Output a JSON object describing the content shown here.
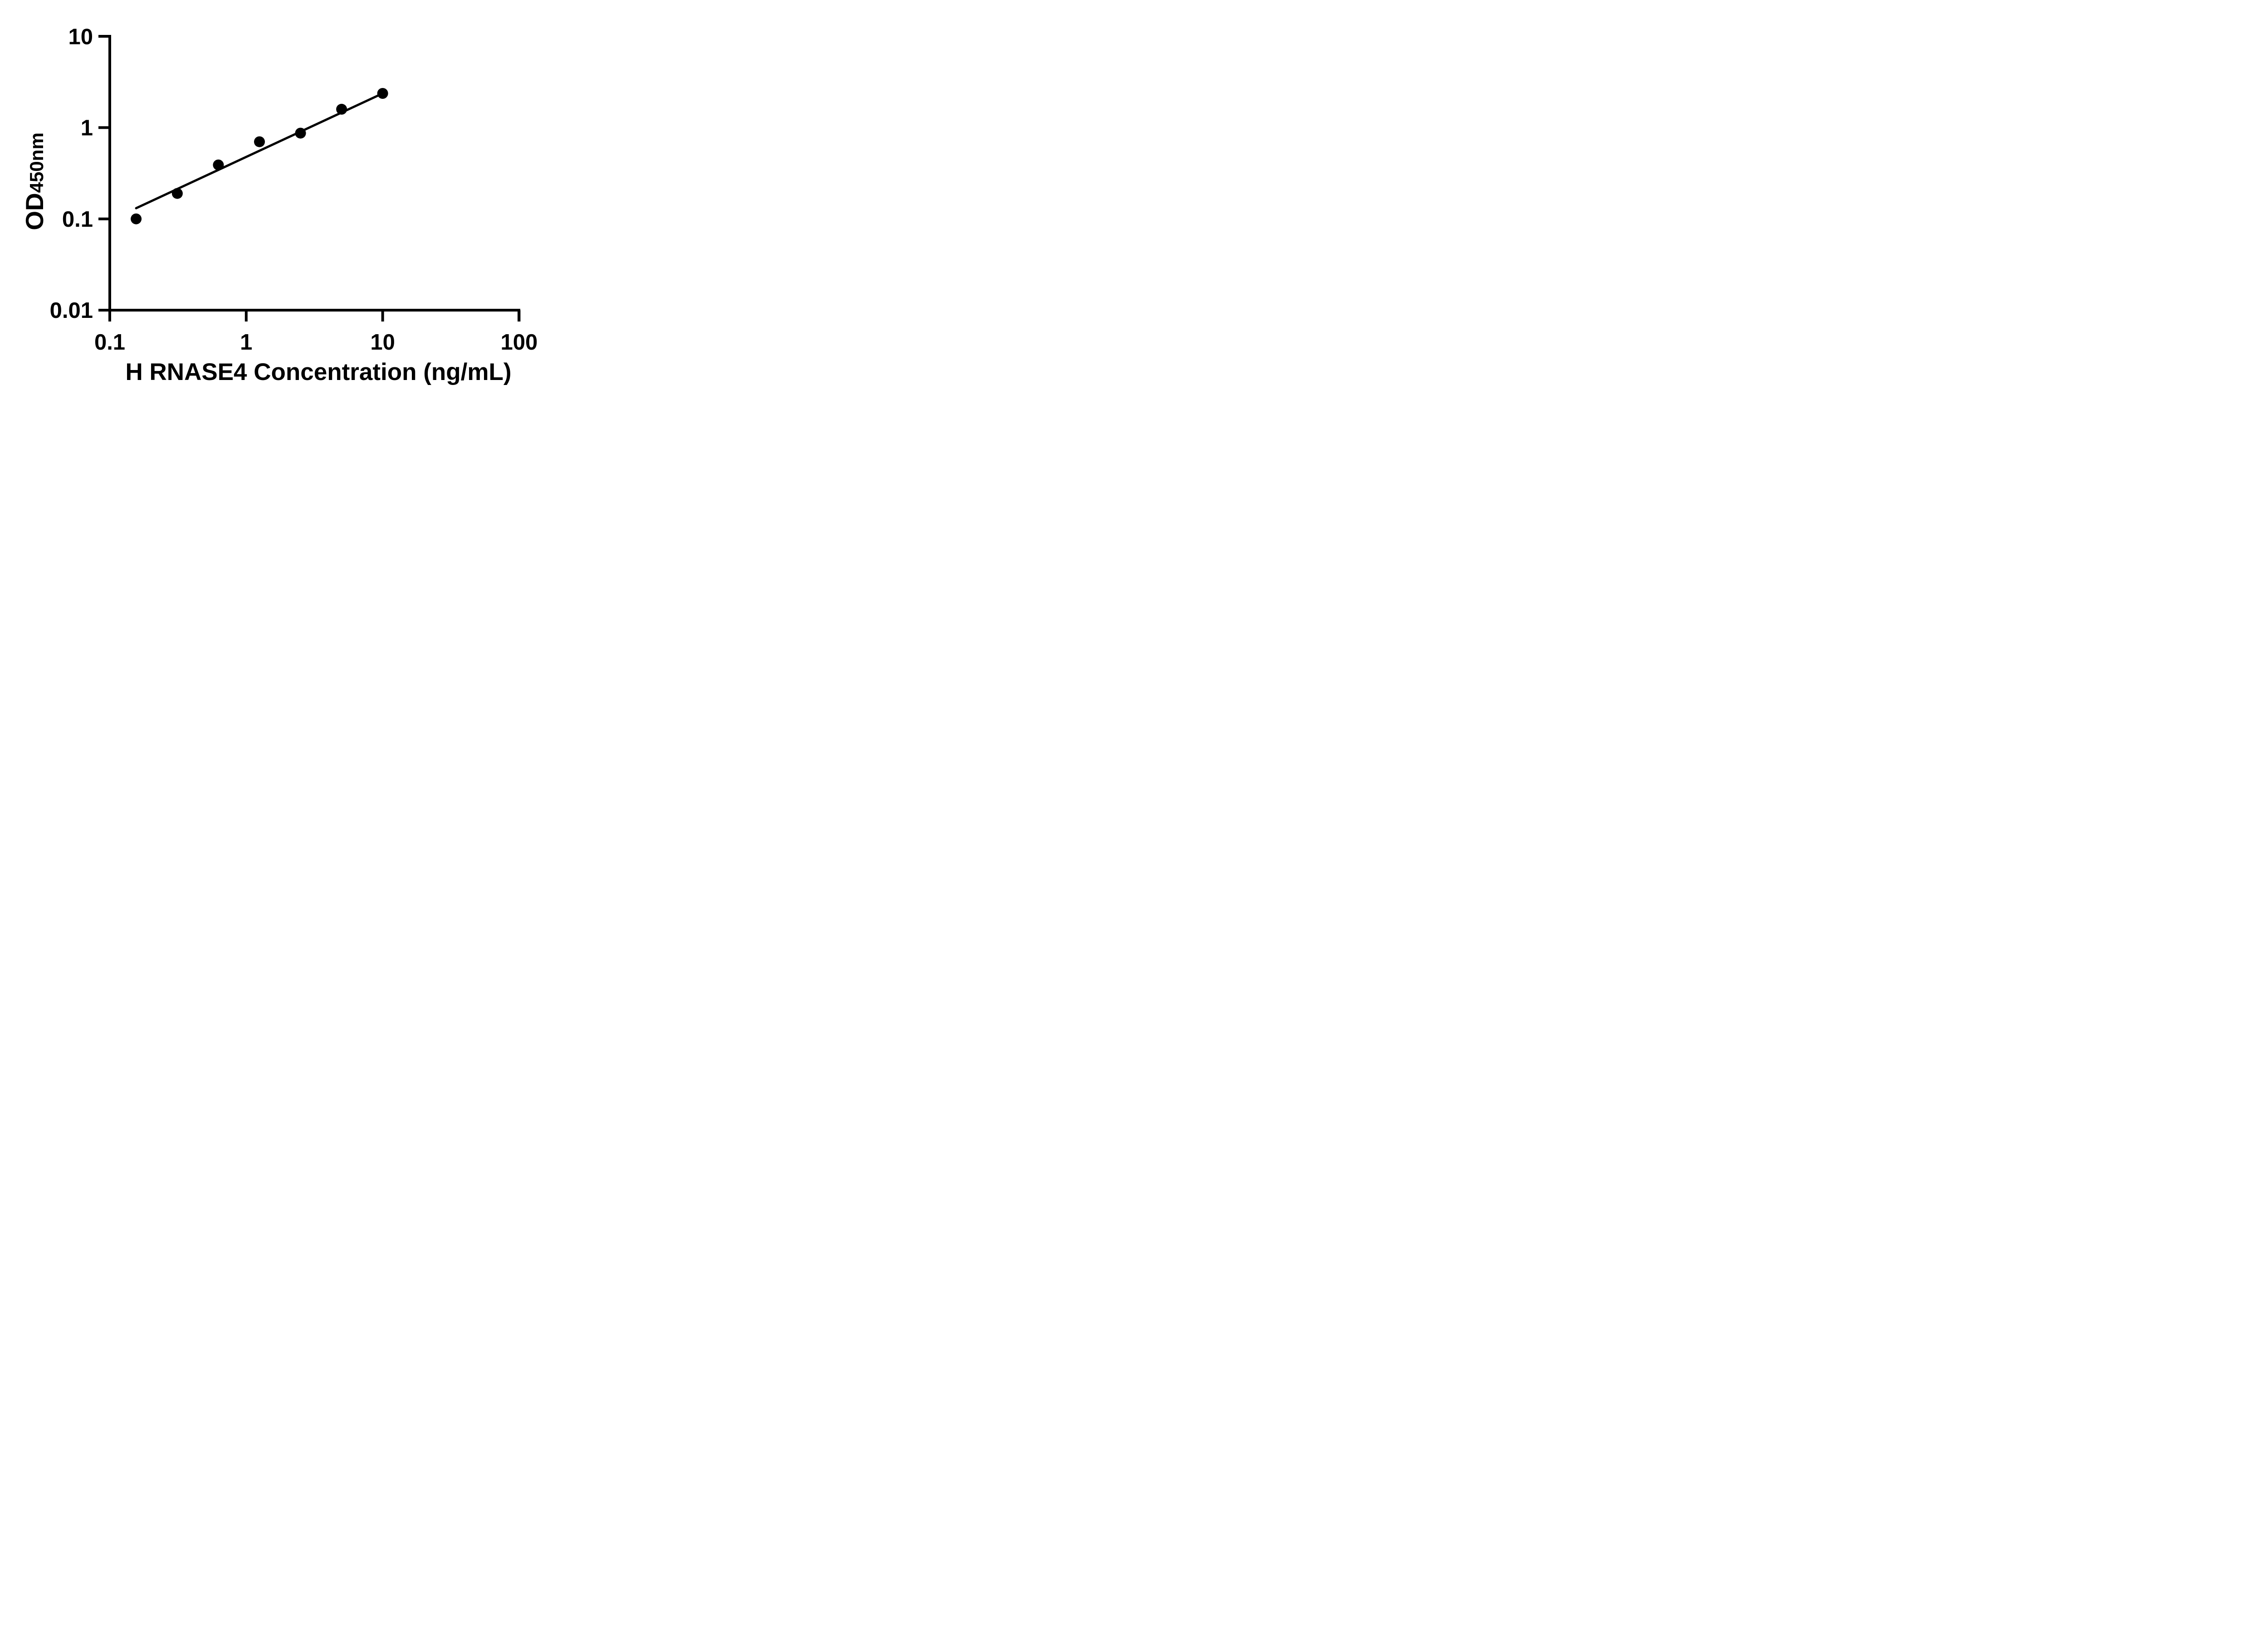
{
  "figure": {
    "background_color": "#ffffff",
    "ink_color": "#000000"
  },
  "chart_data": {
    "type": "scatter",
    "title": "",
    "xlabel": "H RNASE4 Concentration (ng/mL)",
    "ylabel": {
      "main": "OD",
      "subscript": "450nm"
    },
    "grid": false,
    "legend": false,
    "axes": {
      "x": {
        "scale": "log",
        "min": 0.1,
        "max": 100,
        "ticks": [
          {
            "value": 0.1,
            "label": "0.1"
          },
          {
            "value": 1,
            "label": "1"
          },
          {
            "value": 10,
            "label": "10"
          },
          {
            "value": 100,
            "label": "100"
          }
        ]
      },
      "y": {
        "scale": "log",
        "min": 0.01,
        "max": 10,
        "ticks": [
          {
            "value": 0.01,
            "label": "0.01"
          },
          {
            "value": 0.1,
            "label": "0.1"
          },
          {
            "value": 1,
            "label": "1"
          },
          {
            "value": 10,
            "label": "10"
          }
        ]
      }
    },
    "series": [
      {
        "name": "fit-line",
        "type": "line",
        "color": "#000000",
        "points": [
          {
            "x": 0.156,
            "y": 0.131
          },
          {
            "x": 10,
            "y": 2.37
          }
        ]
      },
      {
        "name": "standard-points",
        "type": "scatter",
        "marker": {
          "shape": "circle",
          "fill": "#000000"
        },
        "points": [
          {
            "x": 0.156,
            "y": 0.1
          },
          {
            "x": 0.3125,
            "y": 0.19
          },
          {
            "x": 0.625,
            "y": 0.39
          },
          {
            "x": 1.25,
            "y": 0.7
          },
          {
            "x": 2.5,
            "y": 0.87
          },
          {
            "x": 5,
            "y": 1.59
          },
          {
            "x": 10,
            "y": 2.37
          }
        ]
      }
    ]
  }
}
